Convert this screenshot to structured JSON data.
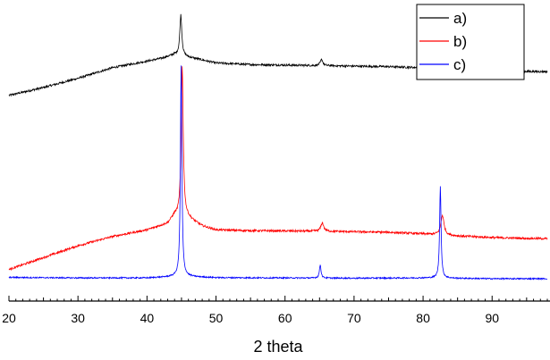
{
  "chart_data": {
    "type": "line",
    "title": "",
    "xlabel": "2 theta",
    "ylabel": "",
    "xlim": [
      20,
      98
    ],
    "ylim": [
      0,
      1.05
    ],
    "grid": false,
    "legend_position": "top-right",
    "x_ticks": [
      20,
      30,
      40,
      50,
      60,
      70,
      80,
      90
    ],
    "x_tick_labels": [
      "20",
      "30",
      "40",
      "50",
      "60",
      "70",
      "80",
      "90"
    ],
    "series": [
      {
        "name": "a)",
        "color": "#000000",
        "baseline": [
          [
            20,
            0.695
          ],
          [
            25,
            0.725
          ],
          [
            30,
            0.76
          ],
          [
            35,
            0.8
          ],
          [
            40,
            0.825
          ],
          [
            42,
            0.835
          ],
          [
            44,
            0.85
          ],
          [
            47,
            0.835
          ],
          [
            50,
            0.818
          ],
          [
            55,
            0.812
          ],
          [
            60,
            0.81
          ],
          [
            65,
            0.808
          ],
          [
            70,
            0.806
          ],
          [
            75,
            0.804
          ],
          [
            80,
            0.8
          ],
          [
            85,
            0.794
          ],
          [
            90,
            0.79
          ],
          [
            95,
            0.786
          ],
          [
            98,
            0.785
          ]
        ],
        "peaks": [
          [
            44.9,
            0.155,
            0.35
          ],
          [
            65.3,
            0.023,
            0.45
          ],
          [
            82.6,
            0.045,
            0.55
          ]
        ],
        "noise": 0.004
      },
      {
        "name": "b)",
        "color": "#ff0000",
        "baseline": [
          [
            20,
            0.035
          ],
          [
            25,
            0.08
          ],
          [
            30,
            0.125
          ],
          [
            35,
            0.16
          ],
          [
            40,
            0.185
          ],
          [
            43,
            0.21
          ],
          [
            44,
            0.24
          ],
          [
            46,
            0.23
          ],
          [
            48,
            0.2
          ],
          [
            50,
            0.185
          ],
          [
            55,
            0.182
          ],
          [
            60,
            0.181
          ],
          [
            65,
            0.18
          ],
          [
            70,
            0.178
          ],
          [
            75,
            0.176
          ],
          [
            80,
            0.17
          ],
          [
            85,
            0.162
          ],
          [
            90,
            0.156
          ],
          [
            95,
            0.153
          ],
          [
            98,
            0.152
          ]
        ],
        "peaks": [
          [
            45.1,
            0.57,
            0.35
          ],
          [
            65.4,
            0.032,
            0.5
          ],
          [
            82.8,
            0.075,
            0.55
          ]
        ],
        "noise": 0.004
      },
      {
        "name": "c)",
        "color": "#0000ff",
        "baseline": [
          [
            20,
            0.005
          ],
          [
            30,
            0.003
          ],
          [
            40,
            0.003
          ],
          [
            44,
            0.008
          ],
          [
            46,
            0.008
          ],
          [
            50,
            0.004
          ],
          [
            60,
            0.003
          ],
          [
            70,
            0.002
          ],
          [
            80,
            0.003
          ],
          [
            90,
            0.0
          ],
          [
            98,
            0.0
          ]
        ],
        "peaks": [
          [
            44.95,
            0.8,
            0.25
          ],
          [
            65.1,
            0.05,
            0.28
          ],
          [
            82.5,
            0.35,
            0.25
          ]
        ],
        "noise": 0.0025
      }
    ]
  }
}
